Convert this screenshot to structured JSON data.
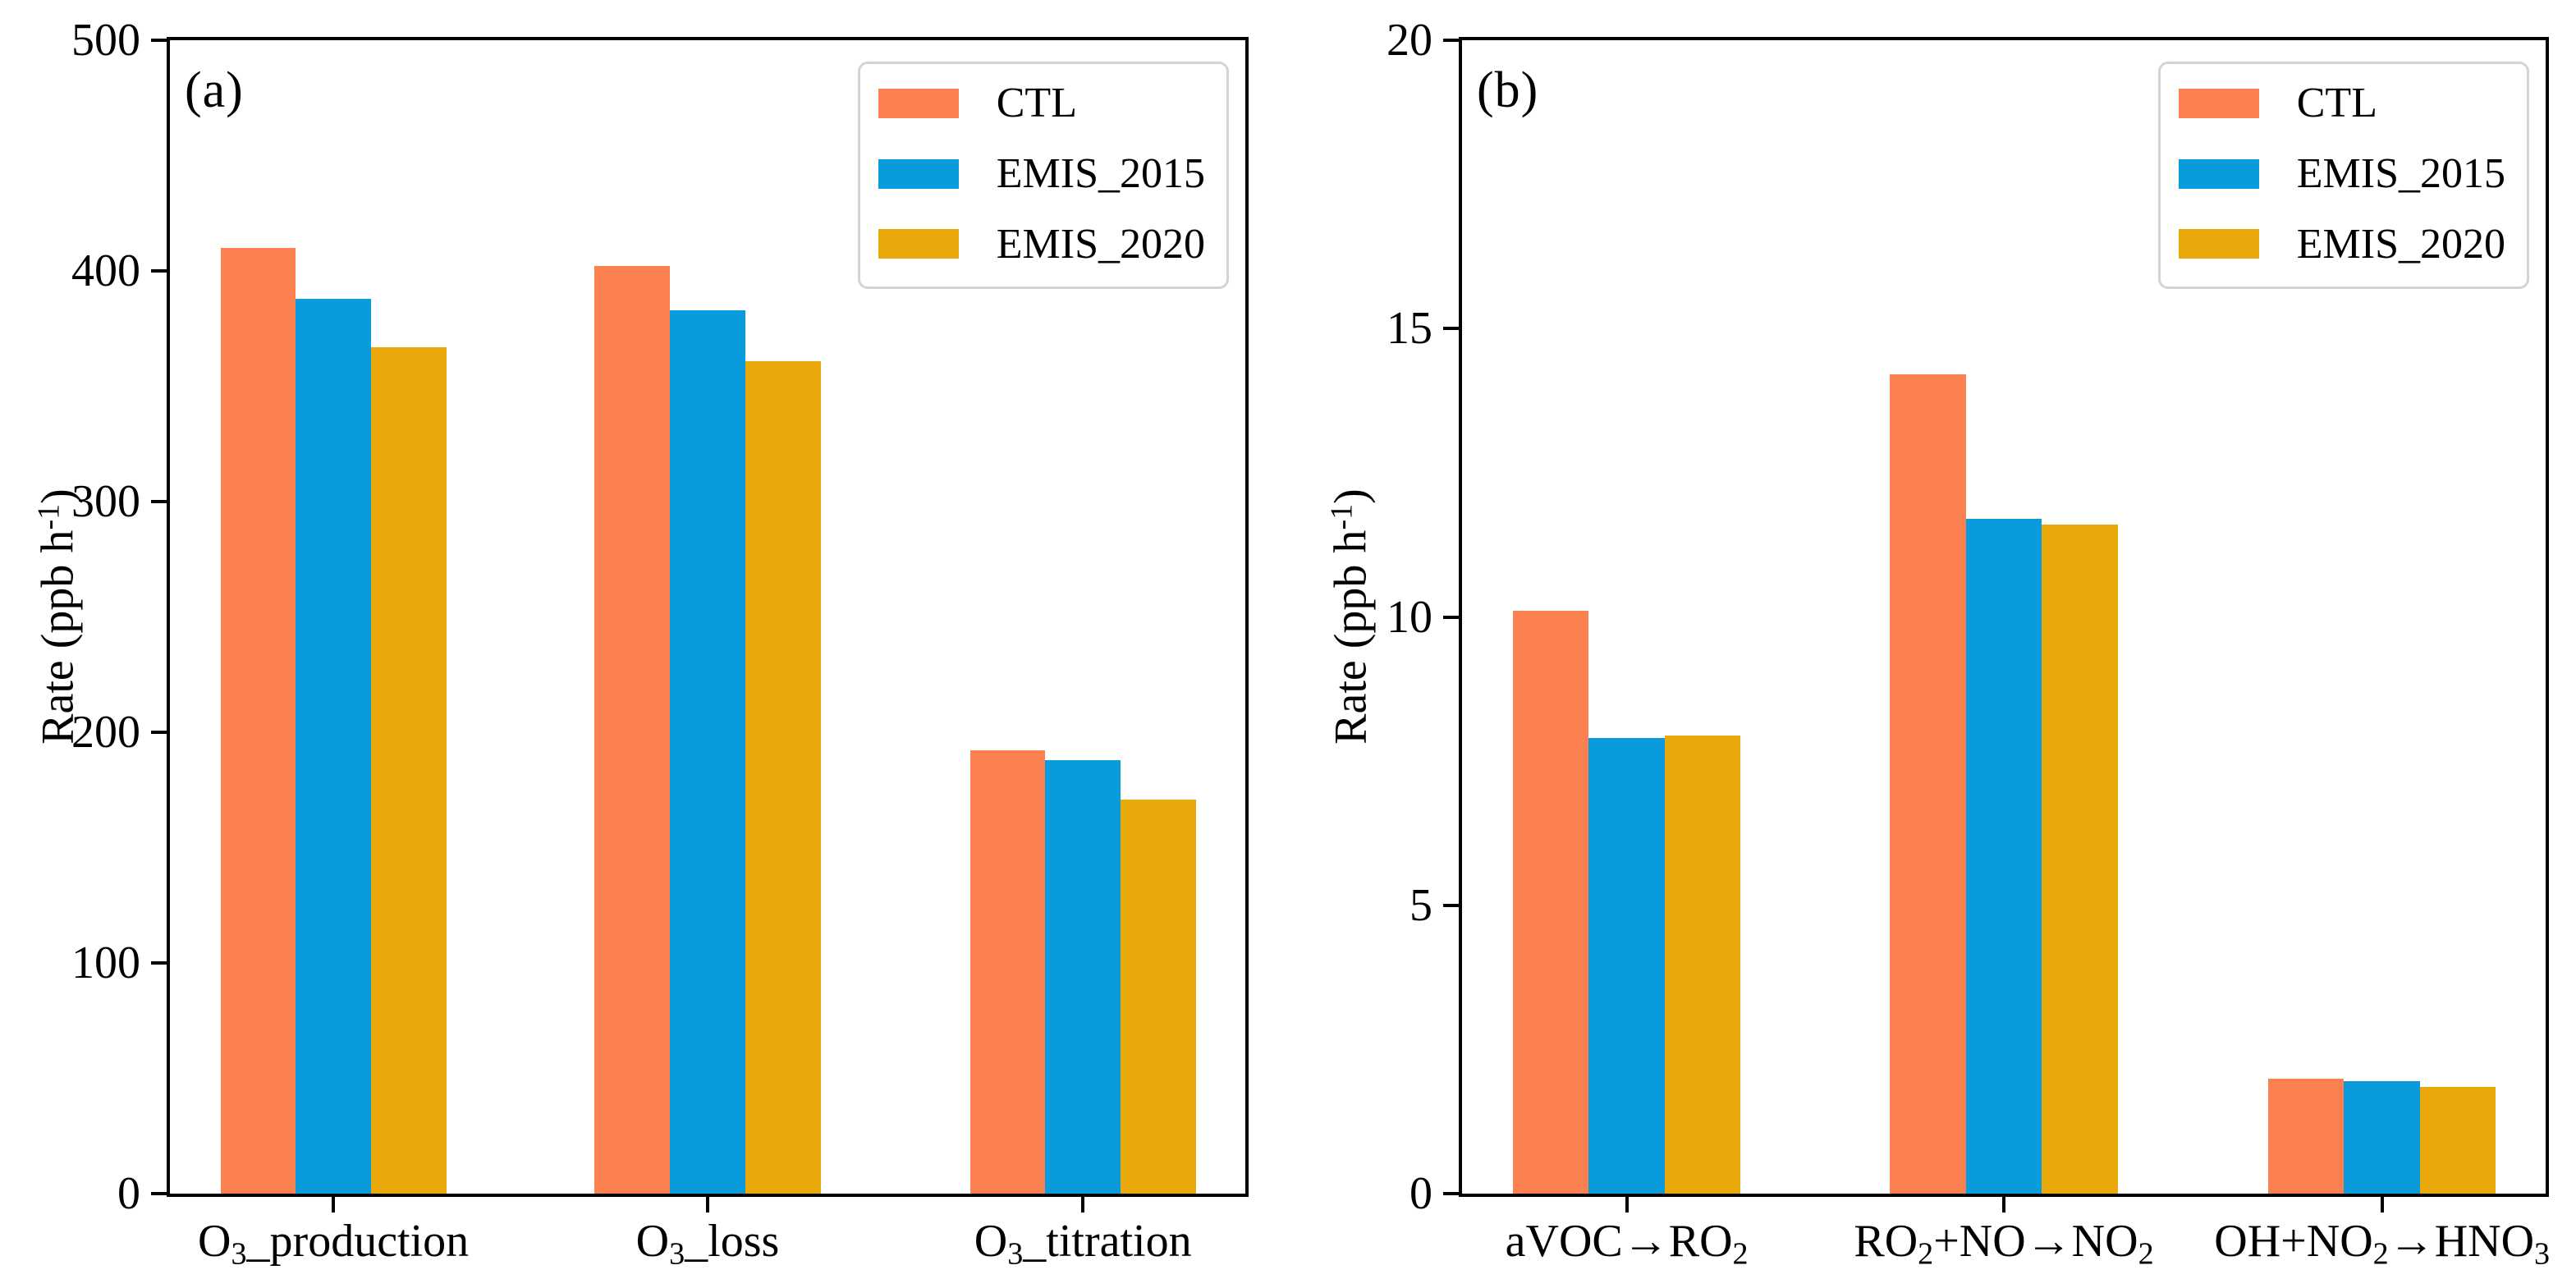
{
  "figure": {
    "background": "#ffffff",
    "spine_color": "#000000",
    "legend_border_color": "#d4d4d4",
    "series_colors": {
      "CTL": "#FB8150",
      "EMIS_2015": "#0A9BDC",
      "EMIS_2020": "#E9A90B"
    }
  },
  "chart_data": [
    {
      "type": "bar",
      "panel_tag": "(a)",
      "title": "",
      "xlabel": "",
      "ylabel": "Rate (ppb h⁻¹)",
      "ylim": [
        0,
        500
      ],
      "yticks": [
        0,
        100,
        200,
        300,
        400,
        500
      ],
      "grid": false,
      "legend_position": "upper right",
      "categories": [
        "O₃_production",
        "O₃_loss",
        "O₃_titration"
      ],
      "series": [
        {
          "name": "CTL",
          "color": "#FB8150",
          "values": [
            410,
            402,
            192
          ]
        },
        {
          "name": "EMIS_2015",
          "color": "#0A9BDC",
          "values": [
            388,
            383,
            188
          ]
        },
        {
          "name": "EMIS_2020",
          "color": "#E9A90B",
          "values": [
            367,
            361,
            171
          ]
        }
      ]
    },
    {
      "type": "bar",
      "panel_tag": "(b)",
      "title": "",
      "xlabel": "",
      "ylabel": "Rate (ppb h⁻¹)",
      "ylim": [
        0,
        20
      ],
      "yticks": [
        0,
        5,
        10,
        15,
        20
      ],
      "grid": false,
      "legend_position": "upper right",
      "categories": [
        "aVOC→RO₂",
        "RO₂+NO→NO₂",
        "OH+NO₂→HNO₃"
      ],
      "series": [
        {
          "name": "CTL",
          "color": "#FB8150",
          "values": [
            10.1,
            14.2,
            2.0
          ]
        },
        {
          "name": "EMIS_2015",
          "color": "#0A9BDC",
          "values": [
            7.9,
            11.7,
            1.95
          ]
        },
        {
          "name": "EMIS_2020",
          "color": "#E9A90B",
          "values": [
            7.95,
            11.6,
            1.85
          ]
        }
      ]
    }
  ]
}
